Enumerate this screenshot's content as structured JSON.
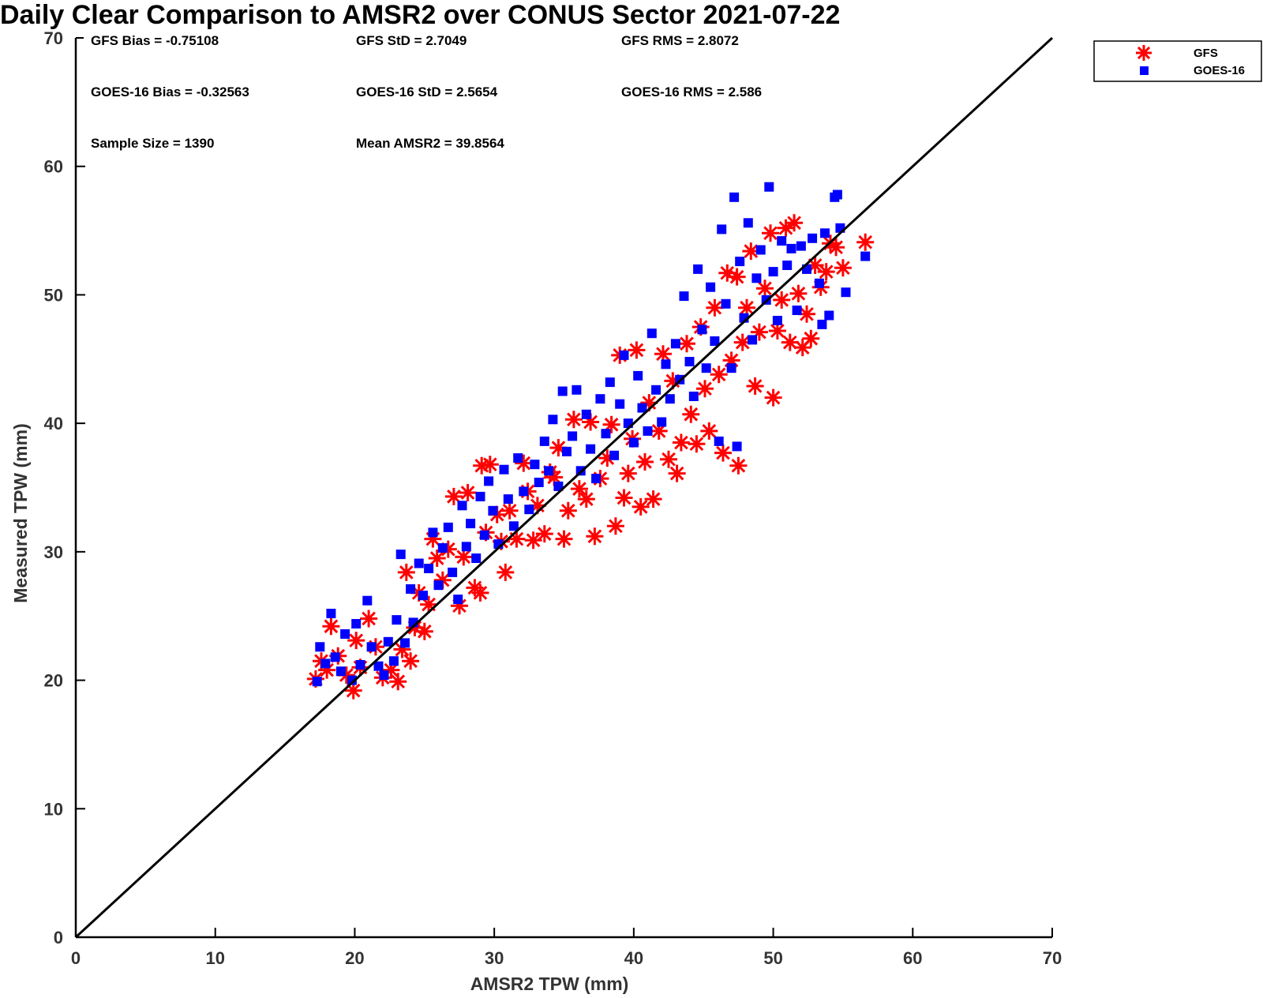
{
  "chart_data": {
    "type": "scatter",
    "title": "Daily Clear Comparison to AMSR2 over CONUS Sector 2021-07-22",
    "xlabel": "AMSR2 TPW (mm)",
    "ylabel": "Measured TPW (mm)",
    "xlim": [
      0,
      70
    ],
    "ylim": [
      0,
      70
    ],
    "xticks": [
      "0",
      "10",
      "20",
      "30",
      "40",
      "50",
      "60",
      "70"
    ],
    "yticks": [
      "0",
      "10",
      "20",
      "30",
      "40",
      "50",
      "60",
      "70"
    ],
    "grid": false,
    "legend_position": "outside-top-right",
    "reference_line": [
      [
        0,
        0
      ],
      [
        70,
        70
      ]
    ],
    "stats": {
      "gfs_bias": "GFS Bias = -0.75108",
      "gfs_std": "GFS StD = 2.7049",
      "gfs_rms": "GFS RMS = 2.8072",
      "goes_bias": "GOES-16 Bias = -0.32563",
      "goes_std": "GOES-16 StD = 2.5654",
      "goes_rms": "GOES-16 RMS = 2.586",
      "sample_size": "Sample Size = 1390",
      "mean_amsr2": "Mean AMSR2 = 39.8564"
    },
    "series": [
      {
        "name": "GFS",
        "marker": "asterisk",
        "color": "#ff0000",
        "points": [
          [
            17.2,
            20.1
          ],
          [
            17.6,
            21.5
          ],
          [
            18.0,
            20.8
          ],
          [
            18.3,
            24.2
          ],
          [
            18.8,
            21.9
          ],
          [
            19.4,
            20.4
          ],
          [
            19.9,
            19.2
          ],
          [
            20.1,
            23.1
          ],
          [
            20.4,
            21.0
          ],
          [
            21.0,
            24.8
          ],
          [
            21.5,
            22.6
          ],
          [
            22.0,
            20.2
          ],
          [
            22.6,
            20.8
          ],
          [
            23.1,
            19.9
          ],
          [
            23.4,
            22.4
          ],
          [
            23.7,
            28.4
          ],
          [
            24.0,
            21.5
          ],
          [
            24.3,
            24.1
          ],
          [
            24.6,
            26.8
          ],
          [
            25.0,
            23.8
          ],
          [
            25.3,
            25.9
          ],
          [
            25.6,
            31.0
          ],
          [
            25.9,
            29.5
          ],
          [
            26.3,
            27.8
          ],
          [
            26.7,
            30.2
          ],
          [
            27.1,
            34.3
          ],
          [
            27.5,
            25.8
          ],
          [
            27.8,
            29.6
          ],
          [
            28.1,
            34.6
          ],
          [
            28.6,
            27.2
          ],
          [
            29.0,
            26.8
          ],
          [
            29.1,
            36.7
          ],
          [
            29.4,
            31.5
          ],
          [
            29.7,
            36.8
          ],
          [
            30.2,
            32.9
          ],
          [
            30.5,
            30.8
          ],
          [
            30.8,
            28.4
          ],
          [
            31.1,
            33.2
          ],
          [
            31.6,
            31.0
          ],
          [
            32.1,
            36.9
          ],
          [
            32.4,
            34.7
          ],
          [
            32.8,
            30.9
          ],
          [
            33.1,
            33.6
          ],
          [
            33.6,
            31.4
          ],
          [
            34.0,
            36.2
          ],
          [
            34.3,
            35.8
          ],
          [
            34.6,
            38.1
          ],
          [
            35.0,
            31.0
          ],
          [
            35.3,
            33.2
          ],
          [
            35.7,
            40.3
          ],
          [
            36.1,
            34.9
          ],
          [
            36.6,
            34.1
          ],
          [
            36.9,
            40.1
          ],
          [
            37.2,
            31.2
          ],
          [
            37.6,
            35.7
          ],
          [
            38.1,
            37.3
          ],
          [
            38.4,
            39.9
          ],
          [
            38.7,
            32.0
          ],
          [
            39.0,
            45.3
          ],
          [
            39.3,
            34.2
          ],
          [
            39.6,
            36.1
          ],
          [
            39.9,
            38.8
          ],
          [
            40.2,
            45.7
          ],
          [
            40.5,
            33.5
          ],
          [
            40.8,
            37.0
          ],
          [
            41.1,
            41.6
          ],
          [
            41.4,
            34.1
          ],
          [
            41.8,
            39.4
          ],
          [
            42.1,
            45.4
          ],
          [
            42.5,
            37.2
          ],
          [
            42.8,
            43.3
          ],
          [
            43.1,
            36.1
          ],
          [
            43.4,
            38.5
          ],
          [
            43.8,
            46.2
          ],
          [
            44.1,
            40.7
          ],
          [
            44.5,
            38.4
          ],
          [
            44.8,
            47.5
          ],
          [
            45.1,
            42.7
          ],
          [
            45.4,
            39.4
          ],
          [
            45.8,
            49.0
          ],
          [
            46.1,
            43.8
          ],
          [
            46.4,
            37.7
          ],
          [
            46.7,
            51.7
          ],
          [
            47.0,
            44.9
          ],
          [
            47.4,
            51.4
          ],
          [
            47.5,
            36.7
          ],
          [
            47.8,
            46.3
          ],
          [
            48.1,
            49.0
          ],
          [
            48.4,
            53.4
          ],
          [
            48.7,
            42.9
          ],
          [
            49.0,
            47.1
          ],
          [
            49.4,
            50.5
          ],
          [
            49.8,
            54.8
          ],
          [
            50.0,
            42.0
          ],
          [
            50.3,
            47.2
          ],
          [
            50.6,
            49.6
          ],
          [
            50.9,
            55.2
          ],
          [
            51.2,
            46.3
          ],
          [
            51.5,
            55.6
          ],
          [
            51.8,
            50.1
          ],
          [
            52.1,
            45.9
          ],
          [
            52.4,
            48.5
          ],
          [
            52.7,
            46.6
          ],
          [
            53.0,
            52.3
          ],
          [
            53.4,
            50.6
          ],
          [
            53.8,
            51.8
          ],
          [
            54.1,
            54.0
          ],
          [
            54.5,
            53.7
          ],
          [
            55.0,
            52.1
          ],
          [
            56.6,
            54.1
          ]
        ]
      },
      {
        "name": "GOES-16",
        "marker": "square",
        "color": "#0000ff",
        "points": [
          [
            17.3,
            19.9
          ],
          [
            17.5,
            22.6
          ],
          [
            17.9,
            21.3
          ],
          [
            18.3,
            25.2
          ],
          [
            18.6,
            21.8
          ],
          [
            19.0,
            20.7
          ],
          [
            19.3,
            23.6
          ],
          [
            19.8,
            20.0
          ],
          [
            20.1,
            24.4
          ],
          [
            20.4,
            21.2
          ],
          [
            20.9,
            26.2
          ],
          [
            21.2,
            22.6
          ],
          [
            21.7,
            21.1
          ],
          [
            22.1,
            20.4
          ],
          [
            22.4,
            23.0
          ],
          [
            22.8,
            21.5
          ],
          [
            23.0,
            24.7
          ],
          [
            23.3,
            29.8
          ],
          [
            23.6,
            22.9
          ],
          [
            24.0,
            27.1
          ],
          [
            24.2,
            24.5
          ],
          [
            24.6,
            29.1
          ],
          [
            24.9,
            26.6
          ],
          [
            25.3,
            28.7
          ],
          [
            25.6,
            31.5
          ],
          [
            26.0,
            27.4
          ],
          [
            26.3,
            30.3
          ],
          [
            26.7,
            31.9
          ],
          [
            27.0,
            28.4
          ],
          [
            27.4,
            26.3
          ],
          [
            27.7,
            33.6
          ],
          [
            28.0,
            30.4
          ],
          [
            28.3,
            32.2
          ],
          [
            28.7,
            29.5
          ],
          [
            29.0,
            34.3
          ],
          [
            29.3,
            31.3
          ],
          [
            29.6,
            35.5
          ],
          [
            29.9,
            33.2
          ],
          [
            30.3,
            30.6
          ],
          [
            30.7,
            36.4
          ],
          [
            31.0,
            34.1
          ],
          [
            31.4,
            32.0
          ],
          [
            31.7,
            37.3
          ],
          [
            32.1,
            34.7
          ],
          [
            32.5,
            33.3
          ],
          [
            32.9,
            36.8
          ],
          [
            33.2,
            35.4
          ],
          [
            33.6,
            38.6
          ],
          [
            33.9,
            36.3
          ],
          [
            34.2,
            40.3
          ],
          [
            34.6,
            35.1
          ],
          [
            34.9,
            42.5
          ],
          [
            35.2,
            37.8
          ],
          [
            35.6,
            39.0
          ],
          [
            35.9,
            42.6
          ],
          [
            36.2,
            36.3
          ],
          [
            36.6,
            40.7
          ],
          [
            36.9,
            38.0
          ],
          [
            37.3,
            35.7
          ],
          [
            37.6,
            41.9
          ],
          [
            38.0,
            39.2
          ],
          [
            38.3,
            43.2
          ],
          [
            38.6,
            37.5
          ],
          [
            39.0,
            41.5
          ],
          [
            39.3,
            45.3
          ],
          [
            39.6,
            40.0
          ],
          [
            40.0,
            38.5
          ],
          [
            40.3,
            43.7
          ],
          [
            40.6,
            41.2
          ],
          [
            41.0,
            39.4
          ],
          [
            41.3,
            47.0
          ],
          [
            41.6,
            42.6
          ],
          [
            42.0,
            40.1
          ],
          [
            42.3,
            44.6
          ],
          [
            42.6,
            41.9
          ],
          [
            43.0,
            46.2
          ],
          [
            43.3,
            43.4
          ],
          [
            43.6,
            49.9
          ],
          [
            44.0,
            44.8
          ],
          [
            44.3,
            42.1
          ],
          [
            44.6,
            52.0
          ],
          [
            44.9,
            47.3
          ],
          [
            45.2,
            44.3
          ],
          [
            45.5,
            50.6
          ],
          [
            45.8,
            46.4
          ],
          [
            46.1,
            38.6
          ],
          [
            46.3,
            55.1
          ],
          [
            46.6,
            49.3
          ],
          [
            47.0,
            44.3
          ],
          [
            47.2,
            57.6
          ],
          [
            47.4,
            38.2
          ],
          [
            47.6,
            52.6
          ],
          [
            47.9,
            48.2
          ],
          [
            48.2,
            55.6
          ],
          [
            48.5,
            46.5
          ],
          [
            48.8,
            51.3
          ],
          [
            49.1,
            53.5
          ],
          [
            49.5,
            49.6
          ],
          [
            49.7,
            58.4
          ],
          [
            50.0,
            51.8
          ],
          [
            50.3,
            48.0
          ],
          [
            50.6,
            54.2
          ],
          [
            51.0,
            52.3
          ],
          [
            51.3,
            53.6
          ],
          [
            51.7,
            48.8
          ],
          [
            52.0,
            53.8
          ],
          [
            52.4,
            52.0
          ],
          [
            52.8,
            54.4
          ],
          [
            53.3,
            50.9
          ],
          [
            53.5,
            47.7
          ],
          [
            53.7,
            54.8
          ],
          [
            54.0,
            48.4
          ],
          [
            54.4,
            57.6
          ],
          [
            54.6,
            57.8
          ],
          [
            54.8,
            55.2
          ],
          [
            55.2,
            50.2
          ],
          [
            56.6,
            53.0
          ]
        ]
      }
    ]
  }
}
